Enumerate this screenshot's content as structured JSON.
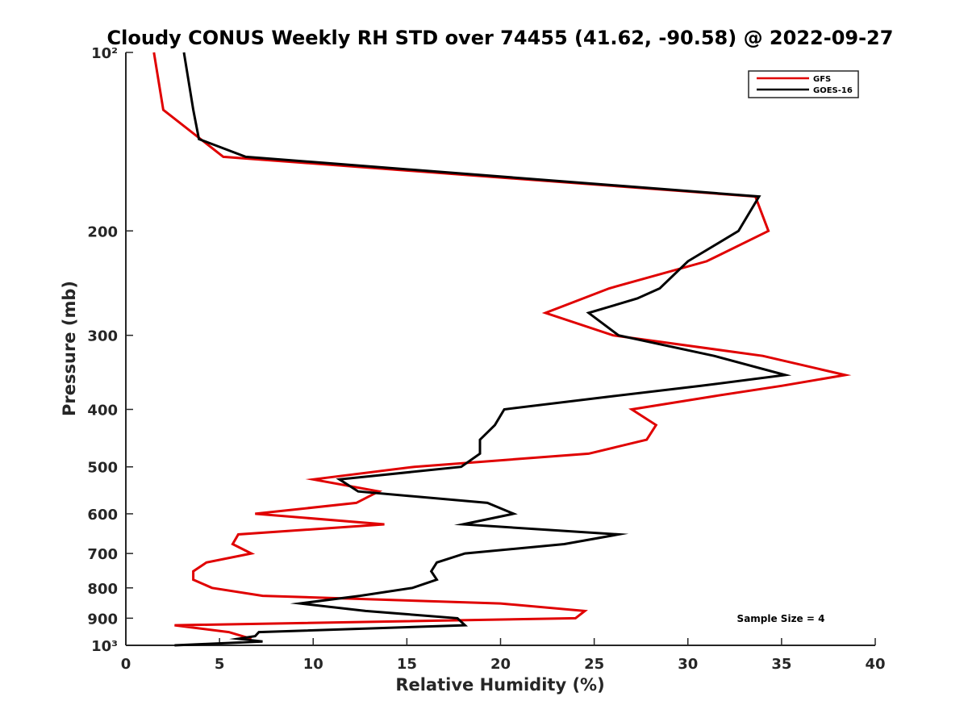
{
  "chart_data": {
    "type": "line",
    "title": "Cloudy CONUS Weekly RH STD over 74455 (41.62, -90.58) @ 2022-09-27",
    "xlabel": "Relative Humidity (%)",
    "ylabel": "Pressure (mb)",
    "xlim": [
      0,
      40
    ],
    "ylim": [
      100,
      1000
    ],
    "y_scale": "log",
    "y_reversed": true,
    "grid": false,
    "legend_position": "top-right",
    "x_ticks": [
      0,
      5,
      10,
      15,
      20,
      25,
      30,
      35,
      40
    ],
    "x_tick_labels": [
      "0",
      "5",
      "10",
      "15",
      "20",
      "25",
      "30",
      "35",
      "40"
    ],
    "y_ticks": [
      100,
      200,
      300,
      400,
      500,
      600,
      700,
      800,
      900,
      1000
    ],
    "y_tick_labels": [
      "10²",
      "200",
      "300",
      "400",
      "500",
      "600",
      "700",
      "800",
      "900",
      "10³"
    ],
    "annotation": "Sample Size = 4",
    "series": [
      {
        "name": "GFS",
        "color": "#e00000",
        "points": [
          [
            1.5,
            100
          ],
          [
            2.0,
            125
          ],
          [
            5.2,
            150
          ],
          [
            33.6,
            175
          ],
          [
            34.3,
            200
          ],
          [
            31.0,
            225
          ],
          [
            25.8,
            250
          ],
          [
            22.4,
            275
          ],
          [
            26.0,
            300
          ],
          [
            34.0,
            325
          ],
          [
            38.4,
            350
          ],
          [
            35.0,
            365
          ],
          [
            31.4,
            380
          ],
          [
            27.0,
            400
          ],
          [
            28.3,
            425
          ],
          [
            27.8,
            450
          ],
          [
            24.7,
            475
          ],
          [
            15.4,
            500
          ],
          [
            10.0,
            525
          ],
          [
            13.5,
            550
          ],
          [
            12.3,
            575
          ],
          [
            6.9,
            600
          ],
          [
            13.8,
            625
          ],
          [
            6.0,
            650
          ],
          [
            5.7,
            675
          ],
          [
            6.7,
            700
          ],
          [
            4.3,
            725
          ],
          [
            3.6,
            750
          ],
          [
            3.6,
            775
          ],
          [
            4.6,
            800
          ],
          [
            7.3,
            825
          ],
          [
            20.0,
            850
          ],
          [
            24.5,
            875
          ],
          [
            24.0,
            900
          ],
          [
            2.6,
            925
          ],
          [
            5.5,
            950
          ],
          [
            6.7,
            975
          ]
        ]
      },
      {
        "name": "GOES-16",
        "color": "#000000",
        "points": [
          [
            3.1,
            100
          ],
          [
            3.6,
            125
          ],
          [
            3.9,
            140
          ],
          [
            6.4,
            150
          ],
          [
            33.8,
            175
          ],
          [
            32.7,
            200
          ],
          [
            30.0,
            225
          ],
          [
            28.5,
            250
          ],
          [
            27.3,
            260
          ],
          [
            24.7,
            275
          ],
          [
            26.3,
            300
          ],
          [
            31.4,
            325
          ],
          [
            35.2,
            350
          ],
          [
            30.7,
            365
          ],
          [
            26.0,
            380
          ],
          [
            20.2,
            400
          ],
          [
            19.7,
            425
          ],
          [
            18.9,
            450
          ],
          [
            18.9,
            475
          ],
          [
            17.9,
            500
          ],
          [
            11.4,
            525
          ],
          [
            12.4,
            550
          ],
          [
            19.3,
            575
          ],
          [
            20.7,
            600
          ],
          [
            18.0,
            625
          ],
          [
            26.3,
            650
          ],
          [
            23.4,
            675
          ],
          [
            18.1,
            700
          ],
          [
            16.6,
            725
          ],
          [
            16.3,
            750
          ],
          [
            16.6,
            775
          ],
          [
            15.3,
            800
          ],
          [
            12.5,
            825
          ],
          [
            9.3,
            850
          ],
          [
            12.8,
            875
          ],
          [
            17.7,
            900
          ],
          [
            18.1,
            925
          ],
          [
            7.1,
            950
          ],
          [
            6.9,
            965
          ],
          [
            6.0,
            975
          ],
          [
            7.3,
            985
          ],
          [
            4.2,
            995
          ],
          [
            2.6,
            1000
          ]
        ]
      }
    ]
  }
}
